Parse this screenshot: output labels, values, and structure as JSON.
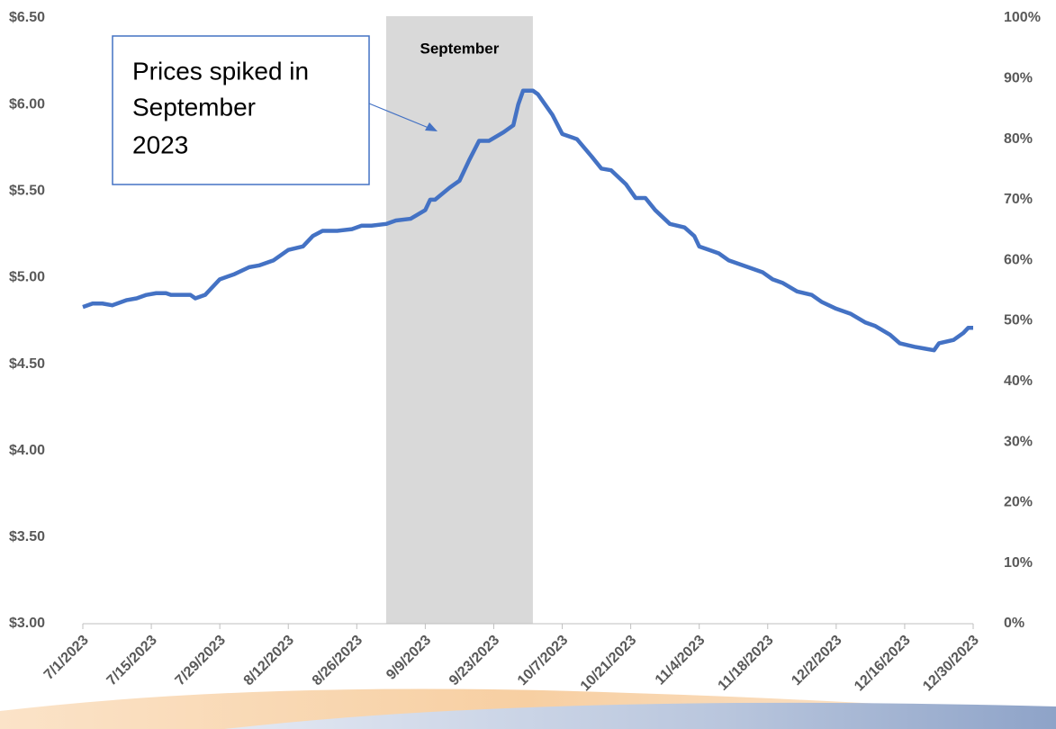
{
  "chart_data": {
    "type": "line",
    "x": [
      "7/1/2023",
      "7/3/2023",
      "7/5/2023",
      "7/7/2023",
      "7/10/2023",
      "7/12/2023",
      "7/14/2023",
      "7/16/2023",
      "7/18/2023",
      "7/19/2023",
      "7/21/2023",
      "7/23/2023",
      "7/24/2023",
      "7/26/2023",
      "7/27/2023",
      "7/29/2023",
      "8/1/2023",
      "8/4/2023",
      "8/6/2023",
      "8/9/2023",
      "8/12/2023",
      "8/15/2023",
      "8/17/2023",
      "8/19/2023",
      "8/22/2023",
      "8/25/2023",
      "8/27/2023",
      "8/29/2023",
      "9/1/2023",
      "9/3/2023",
      "9/6/2023",
      "9/9/2023",
      "9/10/2023",
      "9/11/2023",
      "9/14/2023",
      "9/16/2023",
      "9/18/2023",
      "9/20/2023",
      "9/22/2023",
      "9/25/2023",
      "9/27/2023",
      "9/28/2023",
      "9/29/2023",
      "10/1/2023",
      "10/2/2023",
      "10/5/2023",
      "10/7/2023",
      "10/10/2023",
      "10/13/2023",
      "10/15/2023",
      "10/17/2023",
      "10/20/2023",
      "10/22/2023",
      "10/24/2023",
      "10/26/2023",
      "10/29/2023",
      "11/1/2023",
      "11/3/2023",
      "11/4/2023",
      "11/6/2023",
      "11/8/2023",
      "11/10/2023",
      "11/14/2023",
      "11/17/2023",
      "11/19/2023",
      "11/21/2023",
      "11/24/2023",
      "11/27/2023",
      "11/29/2023",
      "12/2/2023",
      "12/5/2023",
      "12/8/2023",
      "12/10/2023",
      "12/13/2023",
      "12/15/2023",
      "12/18/2023",
      "12/20/2023",
      "12/22/2023",
      "12/23/2023",
      "12/26/2023",
      "12/28/2023",
      "12/29/2023",
      "12/30/2023"
    ],
    "series": [
      {
        "color": "#4472c4",
        "values": [
          4.83,
          4.85,
          4.85,
          4.84,
          4.87,
          4.88,
          4.9,
          4.91,
          4.91,
          4.9,
          4.9,
          4.9,
          4.88,
          4.9,
          4.93,
          4.99,
          5.02,
          5.06,
          5.07,
          5.1,
          5.16,
          5.18,
          5.24,
          5.27,
          5.27,
          5.28,
          5.3,
          5.3,
          5.31,
          5.33,
          5.34,
          5.39,
          5.45,
          5.45,
          5.52,
          5.56,
          5.68,
          5.79,
          5.79,
          5.84,
          5.88,
          6.0,
          6.08,
          6.08,
          6.06,
          5.94,
          5.83,
          5.8,
          5.7,
          5.63,
          5.62,
          5.54,
          5.46,
          5.46,
          5.39,
          5.31,
          5.29,
          5.24,
          5.18,
          5.16,
          5.14,
          5.1,
          5.06,
          5.03,
          4.99,
          4.97,
          4.92,
          4.9,
          4.86,
          4.82,
          4.79,
          4.74,
          4.72,
          4.67,
          4.62,
          4.6,
          4.59,
          4.58,
          4.62,
          4.64,
          4.68,
          4.71,
          4.71
        ]
      }
    ],
    "xlim": [
      "7/1/2023",
      "12/30/2023"
    ],
    "xticks": [
      "7/1/2023",
      "7/15/2023",
      "7/29/2023",
      "8/12/2023",
      "8/26/2023",
      "9/9/2023",
      "9/23/2023",
      "10/7/2023",
      "10/21/2023",
      "11/4/2023",
      "11/18/2023",
      "12/2/2023",
      "12/16/2023",
      "12/30/2023"
    ],
    "ylim": [
      3,
      6.5
    ],
    "yticks": [
      {
        "value": 3,
        "label": "$3.00"
      },
      {
        "value": 3.5,
        "label": "$3.50"
      },
      {
        "value": 4,
        "label": "$4.00"
      },
      {
        "value": 4.5,
        "label": "$4.50"
      },
      {
        "value": 5,
        "label": "$5.00"
      },
      {
        "value": 5.5,
        "label": "$5.50"
      },
      {
        "value": 6,
        "label": "$6.00"
      },
      {
        "value": 6.5,
        "label": "$6.50"
      }
    ],
    "y2lim": [
      0,
      100
    ],
    "y2ticks": [
      {
        "value": 0,
        "label": "0%"
      },
      {
        "value": 10,
        "label": "10%"
      },
      {
        "value": 20,
        "label": "20%"
      },
      {
        "value": 30,
        "label": "30%"
      },
      {
        "value": 40,
        "label": "40%"
      },
      {
        "value": 50,
        "label": "50%"
      },
      {
        "value": 60,
        "label": "60%"
      },
      {
        "value": 70,
        "label": "70%"
      },
      {
        "value": 80,
        "label": "80%"
      },
      {
        "value": 90,
        "label": "90%"
      },
      {
        "value": 100,
        "label": "100%"
      }
    ],
    "shade": {
      "label": "September",
      "x": [
        "9/1/2023",
        "10/1/2023"
      ],
      "color": "#d9d9d9"
    },
    "annotation": {
      "lines": [
        "Prices spiked in",
        "September",
        "2023"
      ]
    }
  }
}
